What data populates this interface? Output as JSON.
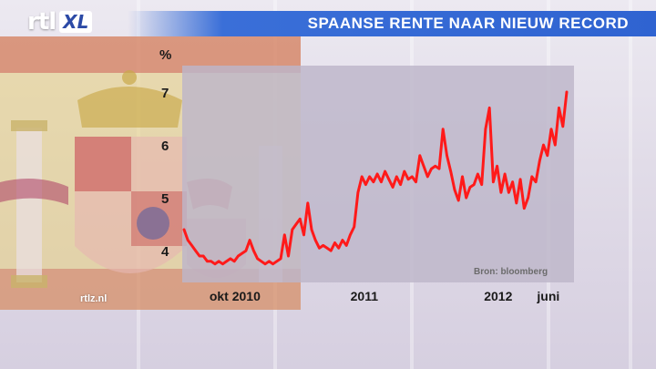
{
  "header": {
    "logo_main": "rtl",
    "logo_badge": "XL",
    "title": "SPAANSE RENTE NAAR NIEUW RECORD"
  },
  "source_text": "Bron: bloomberg",
  "watermark": "rtlz.nl",
  "colors": {
    "line": "#ff1a1a",
    "title_bar": "#2f63d1",
    "plot_bg": "#bdb6c9"
  },
  "chart_data": {
    "type": "line",
    "title": "SPAANSE RENTE NAAR NIEUW RECORD",
    "ylabel": "%",
    "xlabel": "",
    "ylim": [
      3.4,
      7.5
    ],
    "y_ticks": [
      4,
      5,
      6,
      7
    ],
    "x_ticks": [
      "okt 2010",
      "2011",
      "2012",
      "juni"
    ],
    "grid": false,
    "series": [
      {
        "values": [
          4.4,
          4.2,
          4.1,
          4.0,
          3.9,
          3.9,
          3.8,
          3.8,
          3.75,
          3.8,
          3.75,
          3.8,
          3.85,
          3.8,
          3.9,
          3.95,
          4.0,
          4.2,
          4.0,
          3.85,
          3.8,
          3.75,
          3.8,
          3.75,
          3.8,
          3.85,
          4.3,
          3.9,
          4.4,
          4.5,
          4.6,
          4.3,
          4.9,
          4.4,
          4.2,
          4.05,
          4.1,
          4.05,
          4.0,
          4.15,
          4.05,
          4.2,
          4.1,
          4.3,
          4.45,
          5.1,
          5.4,
          5.25,
          5.4,
          5.3,
          5.45,
          5.3,
          5.5,
          5.35,
          5.2,
          5.4,
          5.25,
          5.5,
          5.35,
          5.4,
          5.3,
          5.8,
          5.6,
          5.4,
          5.55,
          5.6,
          5.55,
          6.3,
          5.8,
          5.5,
          5.15,
          4.95,
          5.4,
          5.0,
          5.2,
          5.25,
          5.45,
          5.25,
          6.3,
          6.7,
          5.3,
          5.6,
          5.1,
          5.45,
          5.1,
          5.3,
          4.9,
          5.35,
          4.8,
          5.0,
          5.4,
          5.3,
          5.7,
          6.0,
          5.8,
          6.3,
          6.0,
          6.7,
          6.35,
          7.0
        ]
      }
    ],
    "x_tick_positions": [
      0.133,
      0.471,
      0.821,
      0.952
    ]
  }
}
